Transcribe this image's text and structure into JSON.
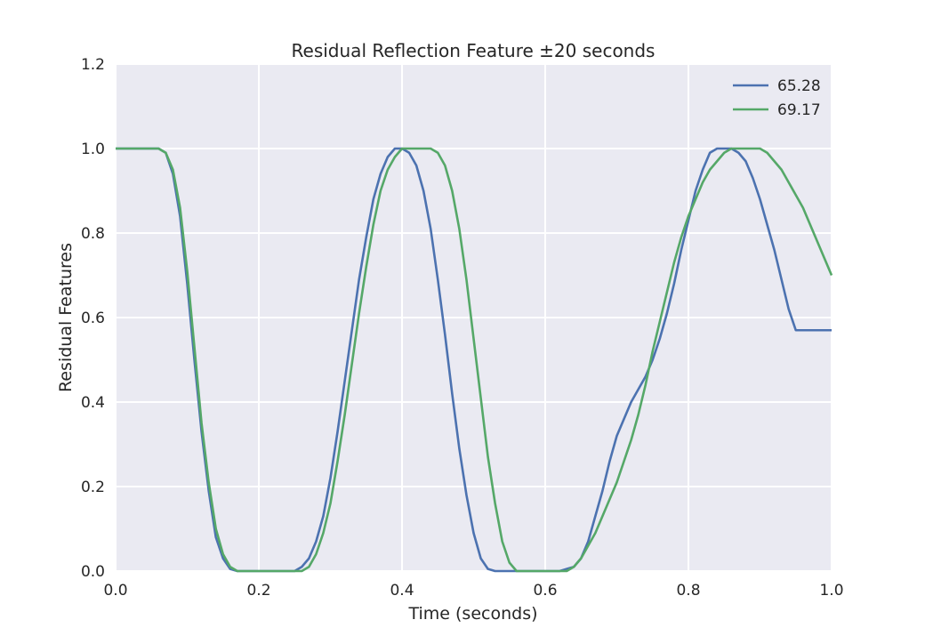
{
  "chart_data": {
    "type": "line",
    "title": "Residual Reflection Feature ±20 seconds",
    "xlabel": "Time (seconds)",
    "ylabel": "Residual Features",
    "xlim": [
      0.0,
      1.0
    ],
    "ylim": [
      0.0,
      1.2
    ],
    "xticks": [
      "0.0",
      "0.2",
      "0.4",
      "0.6",
      "0.8",
      "1.0"
    ],
    "yticks": [
      "0.0",
      "0.2",
      "0.4",
      "0.6",
      "0.8",
      "1.0",
      "1.2"
    ],
    "grid": true,
    "legend_position": "top-right",
    "colors": {
      "background": "#eaeaf2",
      "grid": "#ffffff",
      "series1": "#4c72b0",
      "series2": "#55a868"
    },
    "series": [
      {
        "name": "65.28",
        "x": [
          0.0,
          0.02,
          0.04,
          0.06,
          0.07,
          0.08,
          0.09,
          0.1,
          0.11,
          0.12,
          0.13,
          0.14,
          0.15,
          0.16,
          0.17,
          0.18,
          0.2,
          0.22,
          0.24,
          0.25,
          0.26,
          0.27,
          0.28,
          0.29,
          0.3,
          0.31,
          0.32,
          0.33,
          0.34,
          0.35,
          0.36,
          0.37,
          0.38,
          0.39,
          0.4,
          0.41,
          0.42,
          0.43,
          0.44,
          0.45,
          0.46,
          0.47,
          0.48,
          0.49,
          0.5,
          0.51,
          0.52,
          0.53,
          0.54,
          0.55,
          0.56,
          0.58,
          0.6,
          0.62,
          0.64,
          0.65,
          0.66,
          0.67,
          0.68,
          0.69,
          0.7,
          0.71,
          0.72,
          0.73,
          0.74,
          0.75,
          0.76,
          0.77,
          0.78,
          0.79,
          0.8,
          0.81,
          0.82,
          0.83,
          0.84,
          0.85,
          0.86,
          0.87,
          0.88,
          0.89,
          0.9,
          0.91,
          0.92,
          0.93,
          0.94,
          0.95,
          0.96,
          0.97,
          0.98,
          0.99,
          1.0
        ],
        "y": [
          1.0,
          1.0,
          1.0,
          1.0,
          0.99,
          0.94,
          0.84,
          0.68,
          0.5,
          0.33,
          0.19,
          0.08,
          0.03,
          0.005,
          0.0,
          0.0,
          0.0,
          0.0,
          0.0,
          0.0,
          0.01,
          0.03,
          0.07,
          0.13,
          0.22,
          0.33,
          0.45,
          0.57,
          0.69,
          0.79,
          0.88,
          0.94,
          0.98,
          1.0,
          1.0,
          0.99,
          0.96,
          0.9,
          0.81,
          0.69,
          0.56,
          0.42,
          0.29,
          0.18,
          0.09,
          0.03,
          0.005,
          0.0,
          0.0,
          0.0,
          0.0,
          0.0,
          0.0,
          0.0,
          0.01,
          0.03,
          0.07,
          0.13,
          0.19,
          0.26,
          0.32,
          0.36,
          0.4,
          0.43,
          0.46,
          0.5,
          0.55,
          0.61,
          0.68,
          0.76,
          0.83,
          0.9,
          0.95,
          0.99,
          1.0,
          1.0,
          1.0,
          0.99,
          0.97,
          0.93,
          0.88,
          0.82,
          0.76,
          0.69,
          0.62,
          0.57,
          0.57,
          0.57,
          0.57,
          0.57,
          0.57
        ]
      },
      {
        "name": "69.17",
        "x": [
          0.0,
          0.02,
          0.04,
          0.06,
          0.07,
          0.08,
          0.09,
          0.1,
          0.11,
          0.12,
          0.13,
          0.14,
          0.15,
          0.16,
          0.17,
          0.18,
          0.2,
          0.22,
          0.24,
          0.26,
          0.27,
          0.28,
          0.29,
          0.3,
          0.31,
          0.32,
          0.33,
          0.34,
          0.35,
          0.36,
          0.37,
          0.38,
          0.39,
          0.4,
          0.41,
          0.42,
          0.43,
          0.44,
          0.45,
          0.46,
          0.47,
          0.48,
          0.49,
          0.5,
          0.51,
          0.52,
          0.53,
          0.54,
          0.55,
          0.56,
          0.57,
          0.58,
          0.6,
          0.62,
          0.63,
          0.64,
          0.65,
          0.66,
          0.67,
          0.68,
          0.69,
          0.7,
          0.71,
          0.72,
          0.73,
          0.74,
          0.75,
          0.76,
          0.77,
          0.78,
          0.79,
          0.8,
          0.81,
          0.82,
          0.83,
          0.84,
          0.85,
          0.86,
          0.87,
          0.88,
          0.89,
          0.9,
          0.91,
          0.92,
          0.93,
          0.94,
          0.95,
          0.96,
          0.97,
          0.98,
          0.99,
          1.0
        ],
        "y": [
          1.0,
          1.0,
          1.0,
          1.0,
          0.99,
          0.95,
          0.86,
          0.71,
          0.53,
          0.35,
          0.21,
          0.1,
          0.04,
          0.01,
          0.0,
          0.0,
          0.0,
          0.0,
          0.0,
          0.0,
          0.01,
          0.04,
          0.09,
          0.16,
          0.26,
          0.37,
          0.49,
          0.61,
          0.72,
          0.82,
          0.9,
          0.95,
          0.98,
          1.0,
          1.0,
          1.0,
          1.0,
          1.0,
          0.99,
          0.96,
          0.9,
          0.81,
          0.69,
          0.55,
          0.41,
          0.27,
          0.16,
          0.07,
          0.02,
          0.0,
          0.0,
          0.0,
          0.0,
          0.0,
          0.0,
          0.01,
          0.03,
          0.06,
          0.09,
          0.13,
          0.17,
          0.21,
          0.26,
          0.31,
          0.37,
          0.44,
          0.52,
          0.59,
          0.66,
          0.73,
          0.79,
          0.84,
          0.88,
          0.92,
          0.95,
          0.97,
          0.99,
          1.0,
          1.0,
          1.0,
          1.0,
          1.0,
          0.99,
          0.97,
          0.95,
          0.92,
          0.89,
          0.86,
          0.82,
          0.78,
          0.74,
          0.7
        ]
      }
    ]
  }
}
